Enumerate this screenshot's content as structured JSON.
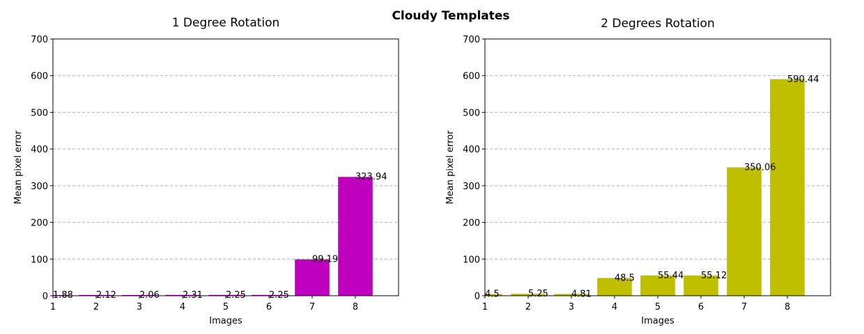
{
  "figure_title": "Cloudy Templates",
  "chart_data": [
    {
      "type": "bar",
      "title": "1 Degree Rotation",
      "xlabel": "Images",
      "ylabel": "Mean pixel error",
      "categories": [
        "1",
        "2",
        "3",
        "4",
        "5",
        "6",
        "7",
        "8"
      ],
      "values": [
        1.88,
        2.12,
        2.06,
        2.31,
        2.25,
        2.25,
        99.19,
        323.94
      ],
      "data_labels": [
        "1.88",
        "2.12",
        "2.06",
        "2.31",
        "2.25",
        "2.25",
        "99.19",
        "323.94"
      ],
      "xlim": [
        1,
        9
      ],
      "ylim": [
        0,
        700
      ],
      "yticks": [
        0,
        100,
        200,
        300,
        400,
        500,
        600,
        700
      ],
      "xticks": [
        1,
        2,
        3,
        4,
        5,
        6,
        7,
        8
      ],
      "grid": "y-dashed",
      "color": "#bf00bf"
    },
    {
      "type": "bar",
      "title": "2 Degrees Rotation",
      "xlabel": "Images",
      "ylabel": "Mean pixel error",
      "categories": [
        "1",
        "2",
        "3",
        "4",
        "5",
        "6",
        "7",
        "8"
      ],
      "values": [
        4.5,
        5.25,
        4.81,
        48.5,
        55.44,
        55.12,
        350.06,
        590.44
      ],
      "data_labels": [
        "4.5",
        "5.25",
        "4.81",
        "48.5",
        "55.44",
        "55.12",
        "350.06",
        "590.44"
      ],
      "xlim": [
        1,
        9
      ],
      "ylim": [
        0,
        700
      ],
      "yticks": [
        0,
        100,
        200,
        300,
        400,
        500,
        600,
        700
      ],
      "xticks": [
        1,
        2,
        3,
        4,
        5,
        6,
        7,
        8
      ],
      "grid": "y-dashed",
      "color": "#bfbf00"
    }
  ]
}
